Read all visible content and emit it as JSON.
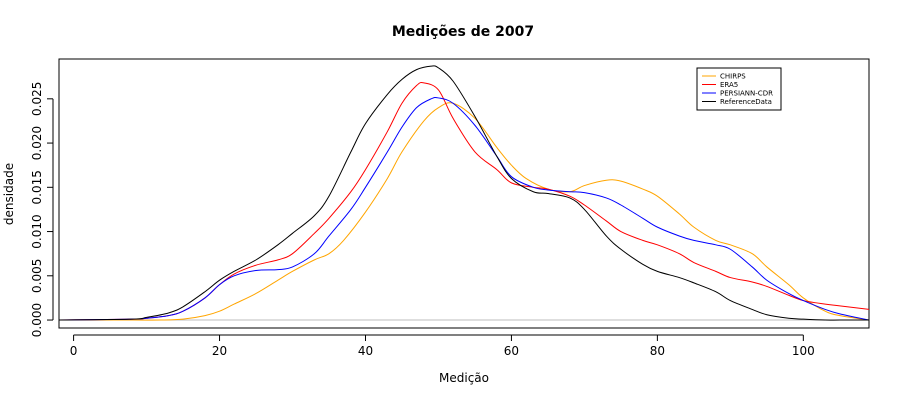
{
  "chart_data": {
    "type": "line",
    "title": "Medições de 2007",
    "xlabel": "Medição",
    "ylabel": "densidade",
    "xlim": [
      -2,
      109
    ],
    "ylim": [
      -0.0009,
      0.0295
    ],
    "xticks": [
      0,
      20,
      40,
      60,
      80,
      100
    ],
    "yticks": [
      0.0,
      0.005,
      0.01,
      0.015,
      0.02,
      0.025
    ],
    "ytick_labels": [
      "0.000",
      "0.005",
      "0.010",
      "0.015",
      "0.020",
      "0.025"
    ],
    "baseline": 0,
    "baseline_color": "#bebebe",
    "legend_position": "top-right",
    "series": [
      {
        "name": "CHIRPS",
        "color": "#FFA500",
        "x": [
          -2,
          8,
          12,
          15,
          18,
          20,
          22,
          25,
          28,
          30,
          33,
          35,
          37,
          40,
          43,
          45,
          48,
          50,
          52,
          55,
          58,
          60,
          62,
          65,
          68,
          70,
          73,
          75,
          78,
          80,
          83,
          85,
          88,
          90,
          93,
          95,
          98,
          100,
          103,
          105,
          109
        ],
        "y": [
          0,
          0,
          0,
          0.0001,
          0.0005,
          0.001,
          0.0018,
          0.003,
          0.0045,
          0.0055,
          0.0068,
          0.0075,
          0.009,
          0.0122,
          0.016,
          0.019,
          0.0225,
          0.024,
          0.0245,
          0.0228,
          0.0195,
          0.0175,
          0.016,
          0.0148,
          0.0145,
          0.0152,
          0.0158,
          0.0157,
          0.0148,
          0.014,
          0.012,
          0.0105,
          0.009,
          0.0085,
          0.0075,
          0.006,
          0.004,
          0.0025,
          0.001,
          0.0005,
          0
        ]
      },
      {
        "name": "ERA5",
        "color": "#FF0000",
        "x": [
          -2,
          8,
          10,
          13,
          15,
          18,
          20,
          22,
          25,
          28,
          30,
          33,
          35,
          38,
          40,
          43,
          45,
          47,
          48,
          50,
          52,
          55,
          58,
          60,
          63,
          65,
          68,
          70,
          73,
          75,
          78,
          80,
          83,
          85,
          88,
          90,
          93,
          95,
          98,
          100,
          103,
          105,
          109
        ],
        "y": [
          0,
          0.0001,
          0.0002,
          0.0005,
          0.001,
          0.0025,
          0.004,
          0.0052,
          0.0062,
          0.0068,
          0.0075,
          0.0098,
          0.0115,
          0.0145,
          0.017,
          0.0213,
          0.0245,
          0.0265,
          0.0268,
          0.026,
          0.0228,
          0.019,
          0.017,
          0.0155,
          0.015,
          0.0148,
          0.014,
          0.013,
          0.0112,
          0.01,
          0.009,
          0.0085,
          0.0075,
          0.0065,
          0.0055,
          0.0048,
          0.0043,
          0.0038,
          0.0028,
          0.0022,
          0.0018,
          0.0016,
          0.0012
        ]
      },
      {
        "name": "PERSIANN-CDR",
        "color": "#0000FF",
        "x": [
          -2,
          8,
          10,
          13,
          15,
          18,
          20,
          22,
          25,
          28,
          30,
          33,
          35,
          38,
          40,
          43,
          45,
          47,
          49,
          50,
          52,
          55,
          58,
          60,
          63,
          65,
          68,
          70,
          73,
          75,
          78,
          80,
          83,
          85,
          88,
          90,
          93,
          95,
          98,
          100,
          103,
          105,
          109
        ],
        "y": [
          0,
          0.0001,
          0.0002,
          0.0005,
          0.001,
          0.0025,
          0.004,
          0.005,
          0.0056,
          0.0057,
          0.006,
          0.0075,
          0.0095,
          0.0125,
          0.015,
          0.019,
          0.0218,
          0.024,
          0.025,
          0.0251,
          0.0245,
          0.022,
          0.0185,
          0.0162,
          0.015,
          0.0147,
          0.0145,
          0.0144,
          0.0138,
          0.013,
          0.0115,
          0.0105,
          0.0095,
          0.009,
          0.0085,
          0.008,
          0.006,
          0.0045,
          0.003,
          0.0022,
          0.0012,
          0.0007,
          0
        ]
      },
      {
        "name": "ReferenceData",
        "color": "#000000",
        "x": [
          -2,
          8,
          10,
          13,
          15,
          18,
          20,
          22,
          25,
          28,
          30,
          33,
          35,
          38,
          40,
          43,
          45,
          47,
          49,
          50,
          52,
          55,
          58,
          60,
          63,
          65,
          68,
          70,
          73,
          75,
          78,
          80,
          83,
          85,
          88,
          90,
          93,
          95,
          98,
          100,
          103,
          105,
          109
        ],
        "y": [
          0,
          0.0001,
          0.0003,
          0.0008,
          0.0015,
          0.0032,
          0.0045,
          0.0055,
          0.0068,
          0.0085,
          0.0098,
          0.0118,
          0.014,
          0.019,
          0.0222,
          0.0255,
          0.0272,
          0.0283,
          0.0287,
          0.0285,
          0.027,
          0.023,
          0.0185,
          0.016,
          0.0145,
          0.0143,
          0.0138,
          0.0125,
          0.0095,
          0.008,
          0.0063,
          0.0055,
          0.0048,
          0.0042,
          0.0032,
          0.0022,
          0.0012,
          0.0006,
          0.0002,
          0.0001,
          0,
          0,
          0
        ]
      }
    ]
  }
}
